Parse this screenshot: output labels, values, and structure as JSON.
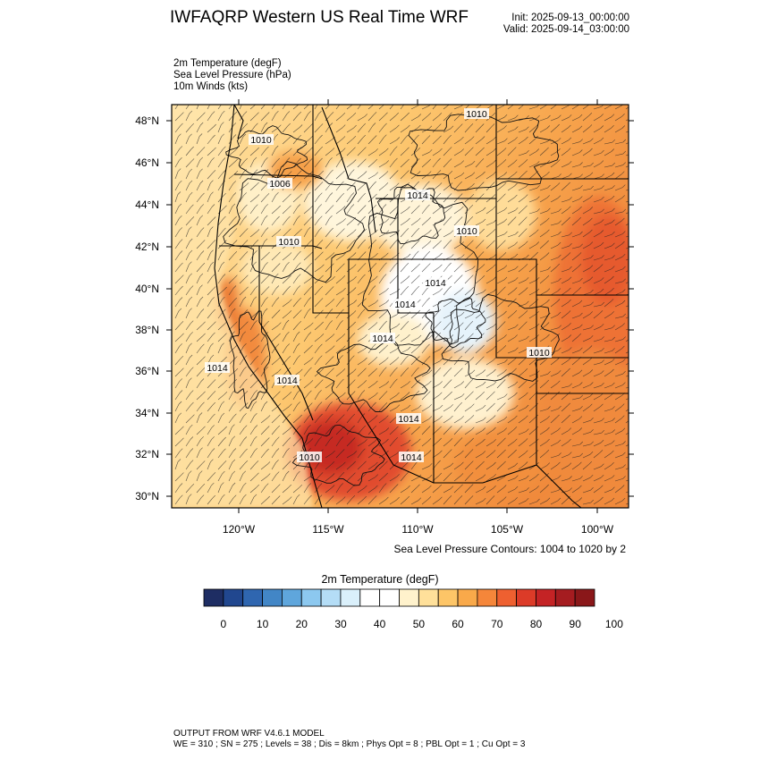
{
  "header": {
    "title": "IWFAQRP Western US Real Time WRF",
    "init": "Init: 2025-09-13_00:00:00",
    "valid": "Valid: 2025-09-14_03:00:00"
  },
  "fields": {
    "line1": "2m Temperature   (degF)",
    "line2": "Sea Level Pressure   (hPa)",
    "line3": "10m Winds   (kts)"
  },
  "map": {
    "lat_labels": [
      "48°N",
      "46°N",
      "44°N",
      "42°N",
      "40°N",
      "38°N",
      "36°N",
      "34°N",
      "32°N",
      "30°N"
    ],
    "lon_labels": [
      "120°W",
      "115°W",
      "110°W",
      "105°W",
      "100°W"
    ],
    "pressure_labels": [
      "1010",
      "1010",
      "1006",
      "1014",
      "1010",
      "1010",
      "1014",
      "1014",
      "1014",
      "1014",
      "1010",
      "1014",
      "1014",
      "1010",
      "1014"
    ]
  },
  "contour_note": "Sea Level Pressure Contours: 1004 to 1020 by 2",
  "colorbar": {
    "title": "2m Temperature  (degF)",
    "tick_labels": [
      "0",
      "10",
      "20",
      "30",
      "40",
      "50",
      "60",
      "70",
      "80",
      "90",
      "100"
    ],
    "colors": [
      "#1e2d63",
      "#21478f",
      "#2f66b0",
      "#4286c6",
      "#5fa6dc",
      "#8cc8ef",
      "#b4ddf6",
      "#daf0fb",
      "#ffffff",
      "#ffffff",
      "#fff2cc",
      "#ffe09a",
      "#fdc567",
      "#f9a94a",
      "#f5863a",
      "#ee6030",
      "#dc3b28",
      "#c42325",
      "#a51c20",
      "#8a1719"
    ]
  },
  "footer": {
    "line1": "OUTPUT FROM WRF V4.6.1 MODEL",
    "line2": "WE = 310 ; SN = 275 ; Levels = 38 ; Dis = 8km ; Phys Opt = 8 ; PBL Opt = 1 ; Cu Opt = 3"
  }
}
